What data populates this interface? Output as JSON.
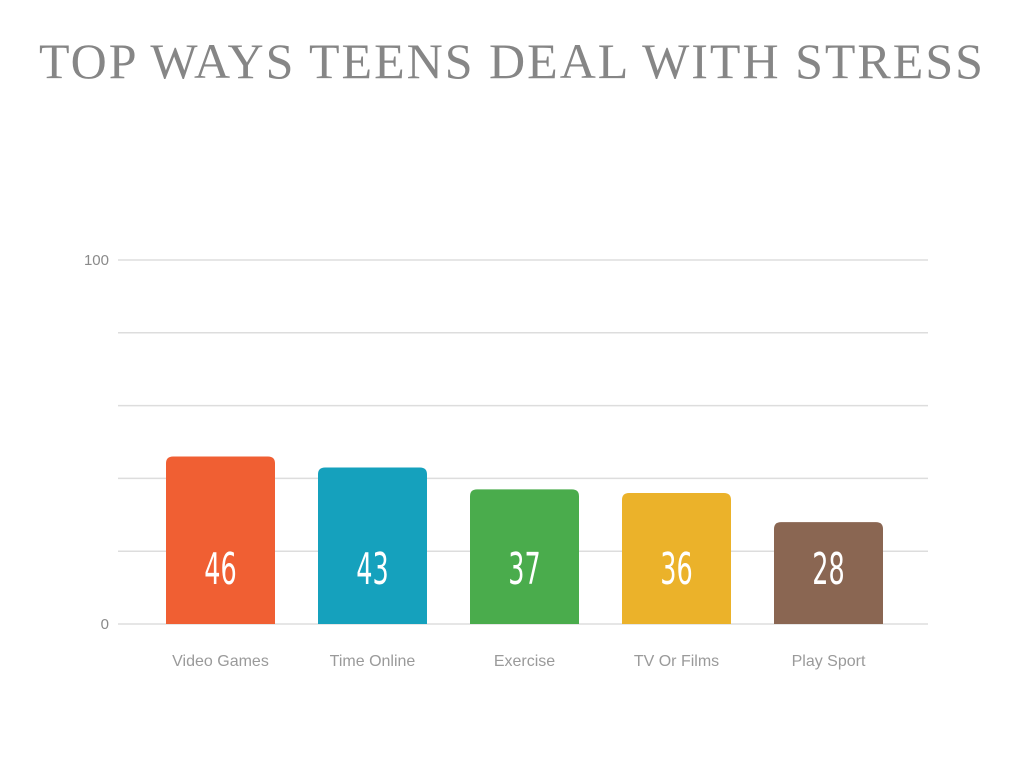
{
  "chart_data": {
    "type": "bar",
    "title": "TOP WAYS TEENS DEAL WITH STRESS",
    "categories": [
      "Video Games",
      "Time Online",
      "Exercise",
      "TV Or Films",
      "Play Sport"
    ],
    "values": [
      46,
      43,
      37,
      36,
      28
    ],
    "colors": [
      "#F05F33",
      "#15A1BD",
      "#4AAC4C",
      "#EBB22A",
      "#8A6652"
    ],
    "ylim": [
      0,
      100
    ],
    "yticks": [
      "0",
      "100"
    ],
    "gridlines": 5,
    "grid": true,
    "xlabel": "",
    "ylabel": "",
    "label_color_inside": "#ffffff",
    "label_color_outside": "#111111"
  }
}
